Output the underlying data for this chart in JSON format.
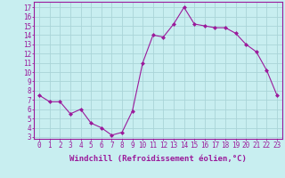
{
  "x": [
    0,
    1,
    2,
    3,
    4,
    5,
    6,
    7,
    8,
    9,
    10,
    11,
    12,
    13,
    14,
    15,
    16,
    17,
    18,
    19,
    20,
    21,
    22,
    23
  ],
  "y": [
    7.5,
    6.8,
    6.8,
    5.5,
    6.0,
    4.5,
    4.0,
    3.2,
    3.5,
    5.8,
    11.0,
    14.0,
    13.8,
    15.2,
    17.0,
    15.2,
    15.0,
    14.8,
    14.8,
    14.2,
    13.0,
    12.2,
    10.2,
    7.5
  ],
  "line_color": "#9b1a9b",
  "marker": "D",
  "marker_size": 2.0,
  "bg_color": "#c8eef0",
  "grid_color": "#aad4d8",
  "xlabel": "Windchill (Refroidissement éolien,°C)",
  "ylabel_ticks": [
    3,
    4,
    5,
    6,
    7,
    8,
    9,
    10,
    11,
    12,
    13,
    14,
    15,
    16,
    17
  ],
  "xticks": [
    0,
    1,
    2,
    3,
    4,
    5,
    6,
    7,
    8,
    9,
    10,
    11,
    12,
    13,
    14,
    15,
    16,
    17,
    18,
    19,
    20,
    21,
    22,
    23
  ],
  "ylim": [
    2.8,
    17.6
  ],
  "xlim": [
    -0.5,
    23.5
  ],
  "tick_color": "#9b1a9b",
  "label_color": "#9b1a9b",
  "spine_color": "#9b1a9b",
  "tick_fontsize": 5.5,
  "xlabel_fontsize": 6.5
}
